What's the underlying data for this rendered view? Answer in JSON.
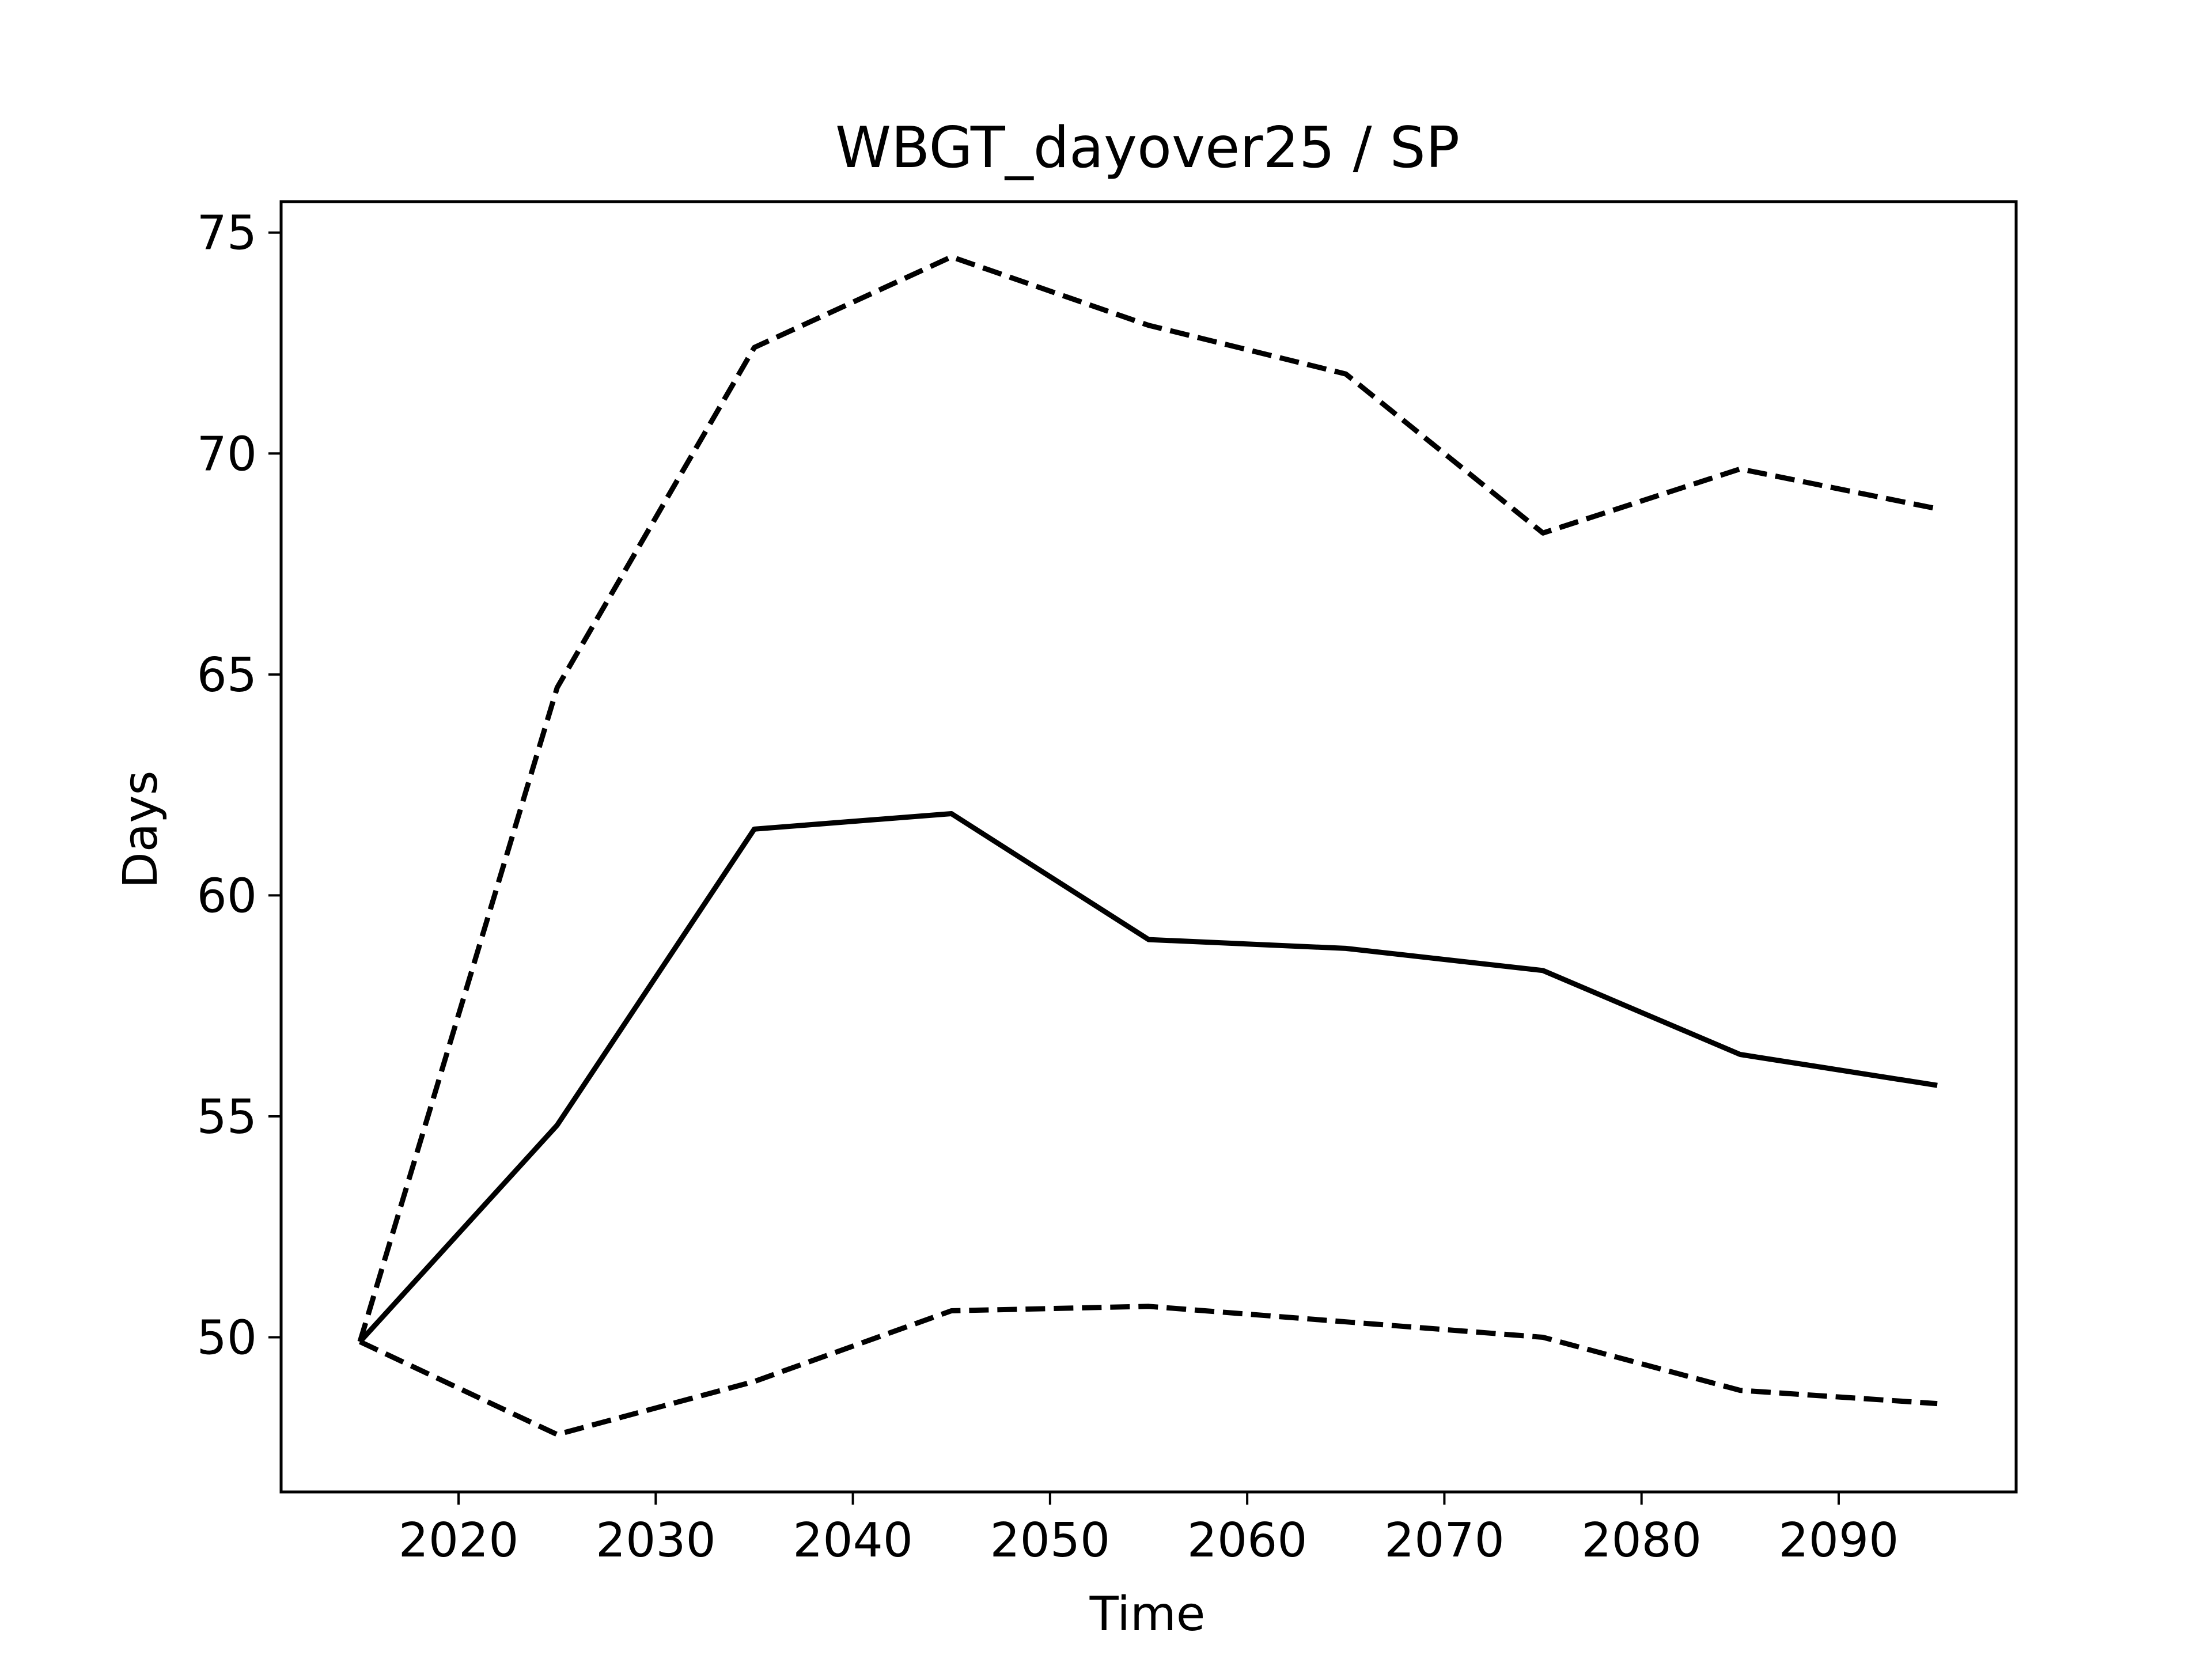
{
  "chart_data": {
    "type": "line",
    "title": "WBGT_dayover25 / SP",
    "xlabel": "Time",
    "ylabel": "Days",
    "x": [
      2015,
      2025,
      2035,
      2045,
      2055,
      2065,
      2075,
      2085,
      2095
    ],
    "series": [
      {
        "style": "solid",
        "color": "#000000",
        "values": [
          49.9,
          54.8,
          61.5,
          61.85,
          59.0,
          58.8,
          58.3,
          56.4,
          55.7
        ]
      },
      {
        "style": "dashed",
        "color": "#000000",
        "values": [
          49.9,
          64.7,
          72.4,
          74.45,
          72.9,
          71.8,
          68.2,
          69.65,
          68.75
        ]
      },
      {
        "style": "dashed",
        "color": "#000000",
        "values": [
          49.9,
          47.8,
          49.0,
          50.6,
          50.7,
          50.35,
          50.0,
          48.8,
          48.5
        ]
      }
    ],
    "xlim": [
      2011,
      2099
    ],
    "ylim": [
      46.5,
      75.7
    ],
    "xticks": [
      "2020",
      "2030",
      "2040",
      "2050",
      "2060",
      "2070",
      "2080",
      "2090"
    ],
    "yticks": [
      "50",
      "55",
      "60",
      "65",
      "70",
      "75"
    ],
    "grid": false,
    "legend": "none"
  }
}
